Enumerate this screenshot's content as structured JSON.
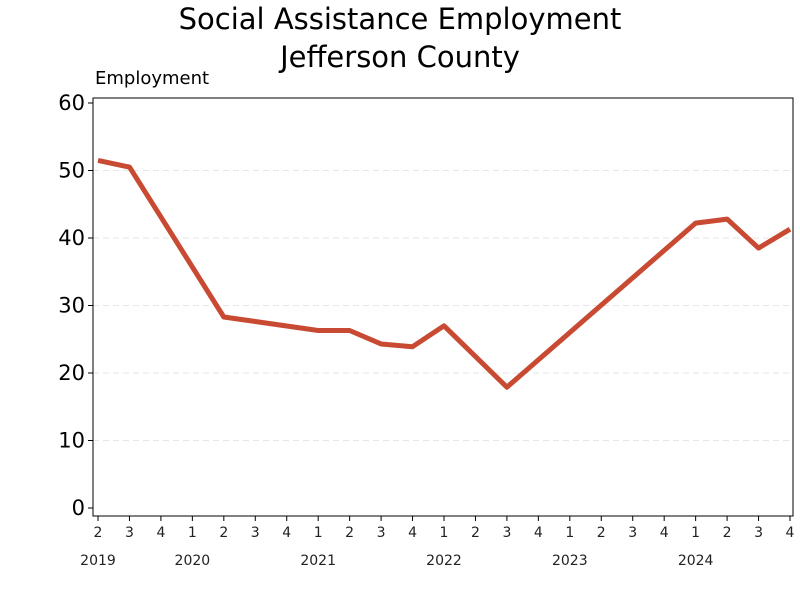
{
  "chart_data": {
    "type": "line",
    "title": "Social Assistance Employment",
    "subtitle": "Jefferson County",
    "ylabel": "Employment",
    "xlabel": "",
    "ylim": [
      0,
      60
    ],
    "yticks": [
      0,
      10,
      20,
      30,
      40,
      50,
      60
    ],
    "grid": "horizontal dashed",
    "line_color": "#c94a32",
    "quarters": [
      "2",
      "3",
      "4",
      "1",
      "2",
      "3",
      "4",
      "1",
      "2",
      "3",
      "4",
      "1",
      "2",
      "3",
      "4",
      "1",
      "2",
      "3",
      "4",
      "1",
      "2",
      "3",
      "4"
    ],
    "years": [
      {
        "label": "2019",
        "index": 0
      },
      {
        "label": "2020",
        "index": 3
      },
      {
        "label": "2021",
        "index": 7
      },
      {
        "label": "2022",
        "index": 11
      },
      {
        "label": "2023",
        "index": 15
      },
      {
        "label": "2024",
        "index": 19
      }
    ],
    "series": [
      {
        "values": [
          51.5,
          50.5,
          null,
          null,
          28.3,
          null,
          null,
          26.3,
          26.3,
          24.3,
          23.9,
          27.0,
          null,
          17.9,
          null,
          null,
          null,
          null,
          null,
          42.2,
          42.8,
          38.5,
          41.3
        ]
      }
    ]
  }
}
